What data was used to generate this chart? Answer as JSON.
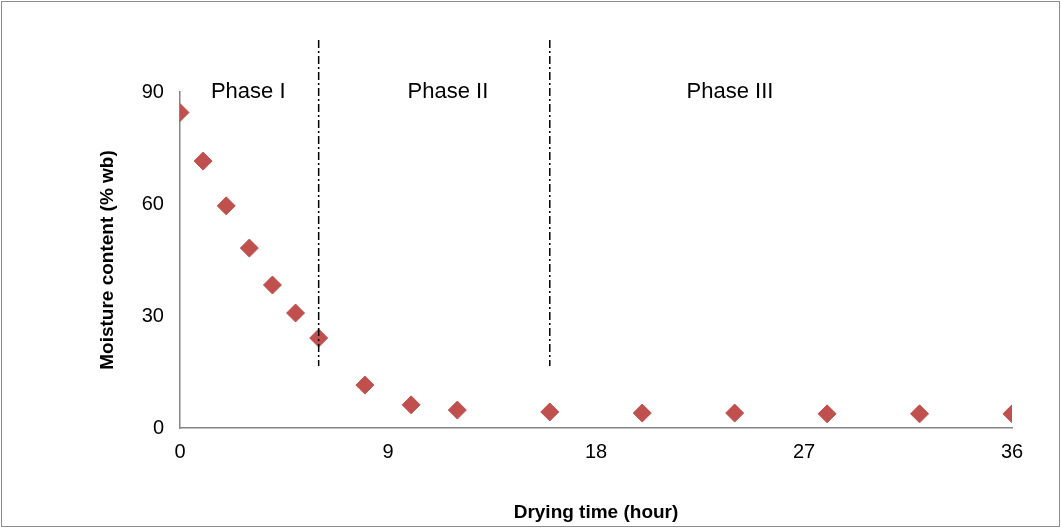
{
  "chart_data": {
    "type": "scatter",
    "xlabel": "Drying time (hour)",
    "ylabel": "Moisture content (% wb)",
    "x": [
      0,
      1,
      2,
      3,
      4,
      5,
      6,
      8,
      10,
      12,
      16,
      20,
      24,
      28,
      32,
      36
    ],
    "series": [
      {
        "color": "#c0504d",
        "values": [
          84.5,
          71.5,
          59.5,
          48.2,
          38.3,
          30.8,
          24.1,
          11.5,
          6.2,
          4.8,
          4.3,
          4.0,
          4.0,
          3.8,
          3.8,
          3.8
        ]
      }
    ],
    "xlim": [
      0,
      36
    ],
    "xticks": [
      0,
      9,
      18,
      27,
      36
    ],
    "ylim": [
      0,
      90
    ],
    "yticks": [
      0,
      30,
      60,
      90
    ],
    "grid": false,
    "legend": false,
    "marker": "diamond",
    "ref_lines": [
      {
        "axis": "x",
        "value": 6,
        "color": "#000000",
        "line_style": "dashdot"
      },
      {
        "axis": "x",
        "value": 16,
        "color": "#000000",
        "line_style": "dashdot"
      }
    ],
    "annotations": [
      "Phase I",
      "Phase II",
      "Phase III"
    ]
  }
}
